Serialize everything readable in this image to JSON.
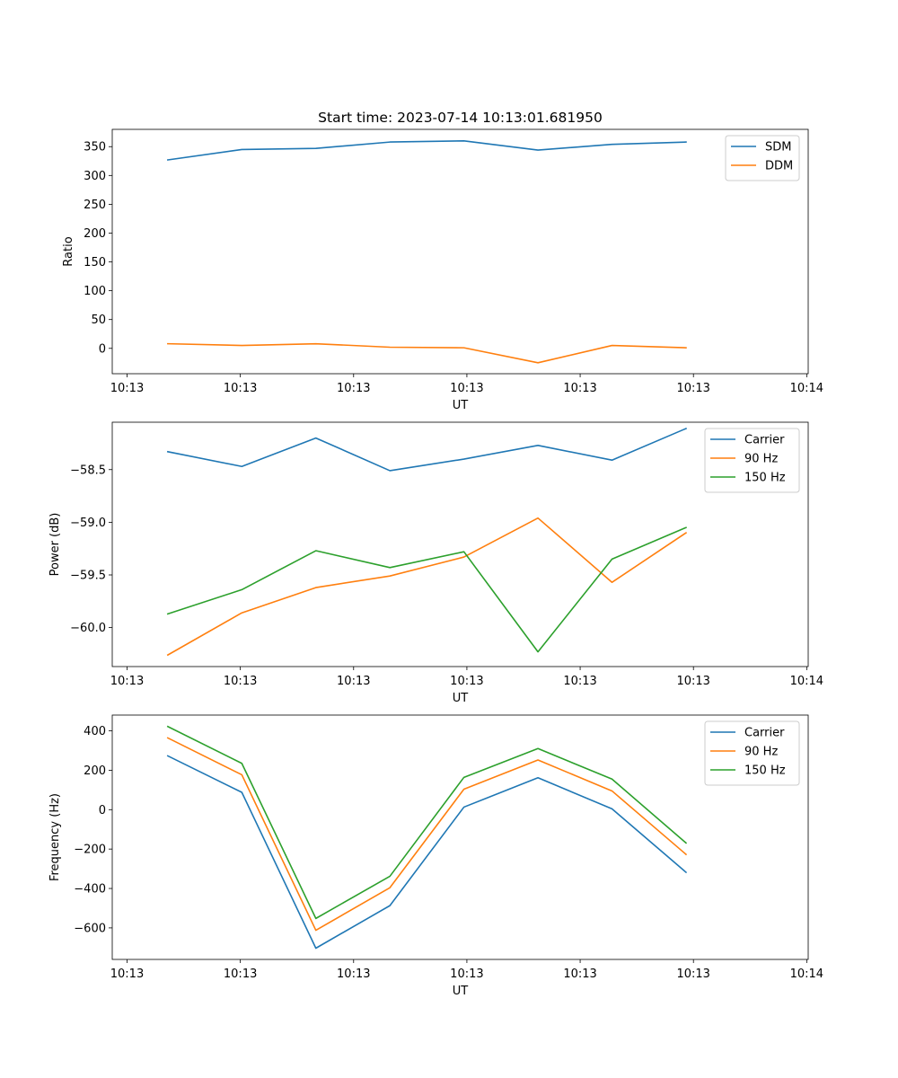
{
  "chart_data": [
    {
      "type": "line",
      "title": "Start time: 2023-07-14 10:13:01.681950",
      "xlabel": "UT",
      "ylabel": "Ratio",
      "xlim": [
        0,
        9.4
      ],
      "ylim": [
        -44,
        380
      ],
      "x": [
        0.75,
        1.75,
        2.75,
        3.75,
        4.75,
        5.75,
        6.75,
        7.75
      ],
      "x_ticks": [
        0.2,
        1.73,
        3.26,
        4.79,
        6.32,
        7.85,
        9.38
      ],
      "x_tick_labels": [
        "10:13",
        "10:13",
        "10:13",
        "10:13",
        "10:13",
        "10:13",
        "10:14"
      ],
      "y_ticks": [
        0,
        50,
        100,
        150,
        200,
        250,
        300,
        350
      ],
      "y_tick_labels": [
        "0",
        "50",
        "100",
        "150",
        "200",
        "250",
        "300",
        "350"
      ],
      "legend_position": "top-right",
      "series": [
        {
          "name": "SDM",
          "color": "#1f77b4",
          "values": [
            327,
            345,
            347,
            358,
            360,
            344,
            354,
            358
          ]
        },
        {
          "name": "DDM",
          "color": "#ff7f0e",
          "values": [
            8,
            5,
            8,
            2,
            1,
            -25,
            5,
            1
          ]
        }
      ]
    },
    {
      "type": "line",
      "title": "",
      "xlabel": "UT",
      "ylabel": "Power (dB)",
      "xlim": [
        0,
        9.4
      ],
      "ylim": [
        -60.37,
        -58.05
      ],
      "x": [
        0.75,
        1.75,
        2.75,
        3.75,
        4.75,
        5.75,
        6.75,
        7.75
      ],
      "x_ticks": [
        0.2,
        1.73,
        3.26,
        4.79,
        6.32,
        7.85,
        9.38
      ],
      "x_tick_labels": [
        "10:13",
        "10:13",
        "10:13",
        "10:13",
        "10:13",
        "10:13",
        "10:14"
      ],
      "y_ticks": [
        -60.0,
        -59.5,
        -59.0,
        -58.5
      ],
      "y_tick_labels": [
        "−60.0",
        "−59.5",
        "−59.0",
        "−58.5"
      ],
      "legend_position": "top-right",
      "series": [
        {
          "name": "Carrier",
          "color": "#1f77b4",
          "values": [
            -58.33,
            -58.47,
            -58.2,
            -58.51,
            -58.4,
            -58.27,
            -58.41,
            -58.11
          ]
        },
        {
          "name": "90 Hz",
          "color": "#ff7f0e",
          "values": [
            -60.26,
            -59.86,
            -59.62,
            -59.51,
            -59.33,
            -58.96,
            -59.57,
            -59.1
          ]
        },
        {
          "name": "150 Hz",
          "color": "#2ca02c",
          "values": [
            -59.87,
            -59.64,
            -59.27,
            -59.43,
            -59.28,
            -60.23,
            -59.35,
            -59.05
          ]
        }
      ]
    },
    {
      "type": "line",
      "title": "",
      "xlabel": "UT",
      "ylabel": "Frequency (Hz)",
      "xlim": [
        0,
        9.4
      ],
      "ylim": [
        -760,
        480
      ],
      "x": [
        0.75,
        1.75,
        2.75,
        3.75,
        4.75,
        5.75,
        6.75,
        7.75
      ],
      "x_ticks": [
        0.2,
        1.73,
        3.26,
        4.79,
        6.32,
        7.85,
        9.38
      ],
      "x_tick_labels": [
        "10:13",
        "10:13",
        "10:13",
        "10:13",
        "10:13",
        "10:13",
        "10:14"
      ],
      "y_ticks": [
        -600,
        -400,
        -200,
        0,
        200,
        400
      ],
      "y_tick_labels": [
        "−600",
        "−400",
        "−200",
        "0",
        "200",
        "400"
      ],
      "legend_position": "top-right",
      "series": [
        {
          "name": "Carrier",
          "color": "#1f77b4",
          "values": [
            273,
            88,
            -703,
            -487,
            13,
            162,
            4,
            -318
          ]
        },
        {
          "name": "90 Hz",
          "color": "#ff7f0e",
          "values": [
            364,
            177,
            -612,
            -396,
            104,
            252,
            95,
            -227
          ]
        },
        {
          "name": "150 Hz",
          "color": "#2ca02c",
          "values": [
            422,
            235,
            -552,
            -338,
            164,
            310,
            155,
            -169
          ]
        }
      ]
    }
  ]
}
